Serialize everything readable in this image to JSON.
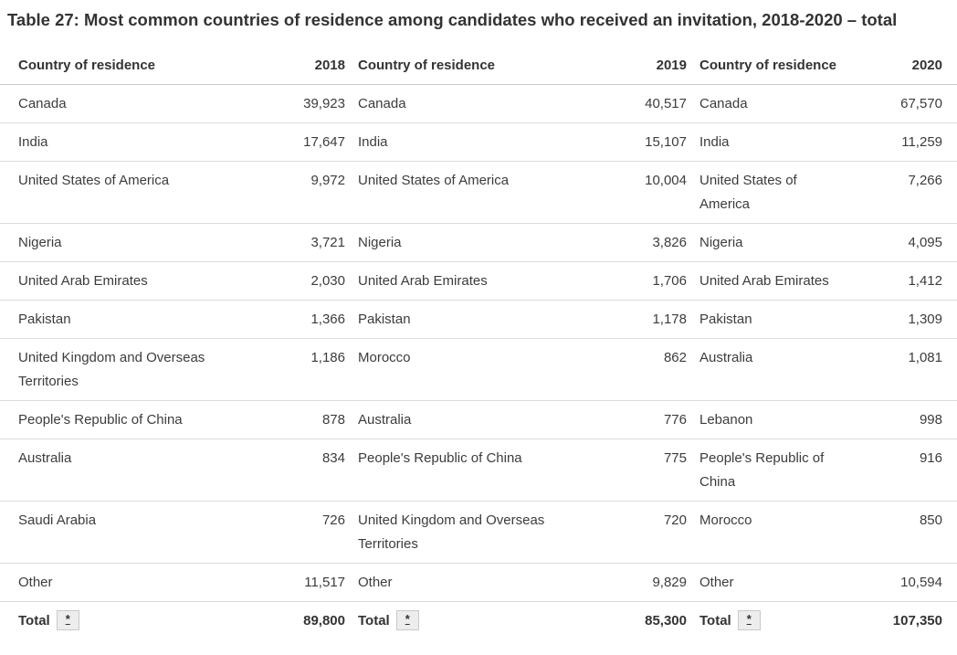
{
  "title": "Table 27: Most common countries of residence among candidates who received an invitation, 2018-2020 – total",
  "table": {
    "header": [
      {
        "country_label": "Country of residence",
        "year": "2018"
      },
      {
        "country_label": "Country of residence",
        "year": "2019"
      },
      {
        "country_label": "Country of residence",
        "year": "2020"
      }
    ],
    "footnote_marker": "*",
    "rows": [
      {
        "pairs": [
          {
            "country": "Canada",
            "value": "39,923"
          },
          {
            "country": "Canada",
            "value": "40,517"
          },
          {
            "country": "Canada",
            "value": "67,570"
          }
        ]
      },
      {
        "pairs": [
          {
            "country": "India",
            "value": "17,647"
          },
          {
            "country": "India",
            "value": "15,107"
          },
          {
            "country": "India",
            "value": "11,259"
          }
        ]
      },
      {
        "pairs": [
          {
            "country": "United States of America",
            "value": "9,972"
          },
          {
            "country": "United States of America",
            "value": "10,004"
          },
          {
            "country": "United States of America",
            "value": "7,266"
          }
        ]
      },
      {
        "pairs": [
          {
            "country": "Nigeria",
            "value": "3,721"
          },
          {
            "country": "Nigeria",
            "value": "3,826"
          },
          {
            "country": "Nigeria",
            "value": "4,095"
          }
        ]
      },
      {
        "pairs": [
          {
            "country": "United Arab Emirates",
            "value": "2,030"
          },
          {
            "country": "United Arab Emirates",
            "value": "1,706"
          },
          {
            "country": "United Arab Emirates",
            "value": "1,412"
          }
        ]
      },
      {
        "pairs": [
          {
            "country": "Pakistan",
            "value": "1,366"
          },
          {
            "country": "Pakistan",
            "value": "1,178"
          },
          {
            "country": "Pakistan",
            "value": "1,309"
          }
        ]
      },
      {
        "pairs": [
          {
            "country": "United Kingdom and Overseas Territories",
            "value": "1,186"
          },
          {
            "country": "Morocco",
            "value": "862"
          },
          {
            "country": "Australia",
            "value": "1,081"
          }
        ]
      },
      {
        "pairs": [
          {
            "country": "People's Republic of China",
            "value": "878"
          },
          {
            "country": "Australia",
            "value": "776"
          },
          {
            "country": "Lebanon",
            "value": "998"
          }
        ]
      },
      {
        "pairs": [
          {
            "country": "Australia",
            "value": "834"
          },
          {
            "country": "People's Republic of China",
            "value": "775"
          },
          {
            "country": "People's Republic of China",
            "value": "916"
          }
        ]
      },
      {
        "pairs": [
          {
            "country": "Saudi Arabia",
            "value": "726"
          },
          {
            "country": "United Kingdom and Overseas Territories",
            "value": "720"
          },
          {
            "country": "Morocco",
            "value": "850"
          }
        ]
      },
      {
        "pairs": [
          {
            "country": "Other",
            "value": "11,517"
          },
          {
            "country": "Other",
            "value": "9,829"
          },
          {
            "country": "Other",
            "value": "10,594"
          }
        ]
      }
    ],
    "total": {
      "label": "Total",
      "values": [
        "89,800",
        "85,300",
        "107,350"
      ]
    }
  },
  "colors": {
    "text": "#3c3c3c",
    "heading": "#333333",
    "row_border": "#dcdcdc",
    "header_border": "#c9c9c9",
    "footnote_button_bg": "#ededed"
  },
  "chart_data": {
    "type": "table",
    "title": "Table 27: Most common countries of residence among candidates who received an invitation, 2018-2020 – total",
    "columns": [
      "Country of residence",
      "2018",
      "Country of residence",
      "2019",
      "Country of residence",
      "2020"
    ],
    "tables": [
      {
        "year": "2018",
        "rows": [
          [
            "Canada",
            39923
          ],
          [
            "India",
            17647
          ],
          [
            "United States of America",
            9972
          ],
          [
            "Nigeria",
            3721
          ],
          [
            "United Arab Emirates",
            2030
          ],
          [
            "Pakistan",
            1366
          ],
          [
            "United Kingdom and Overseas Territories",
            1186
          ],
          [
            "People's Republic of China",
            878
          ],
          [
            "Australia",
            834
          ],
          [
            "Saudi Arabia",
            726
          ],
          [
            "Other",
            11517
          ]
        ],
        "total": 89800
      },
      {
        "year": "2019",
        "rows": [
          [
            "Canada",
            40517
          ],
          [
            "India",
            15107
          ],
          [
            "United States of America",
            10004
          ],
          [
            "Nigeria",
            3826
          ],
          [
            "United Arab Emirates",
            1706
          ],
          [
            "Pakistan",
            1178
          ],
          [
            "Morocco",
            862
          ],
          [
            "Australia",
            776
          ],
          [
            "People's Republic of China",
            775
          ],
          [
            "United Kingdom and Overseas Territories",
            720
          ],
          [
            "Other",
            9829
          ]
        ],
        "total": 85300
      },
      {
        "year": "2020",
        "rows": [
          [
            "Canada",
            67570
          ],
          [
            "India",
            11259
          ],
          [
            "United States of America",
            7266
          ],
          [
            "Nigeria",
            4095
          ],
          [
            "United Arab Emirates",
            1412
          ],
          [
            "Pakistan",
            1309
          ],
          [
            "Australia",
            1081
          ],
          [
            "Lebanon",
            998
          ],
          [
            "People's Republic of China",
            916
          ],
          [
            "Morocco",
            850
          ],
          [
            "Other",
            10594
          ]
        ],
        "total": 107350
      }
    ]
  }
}
